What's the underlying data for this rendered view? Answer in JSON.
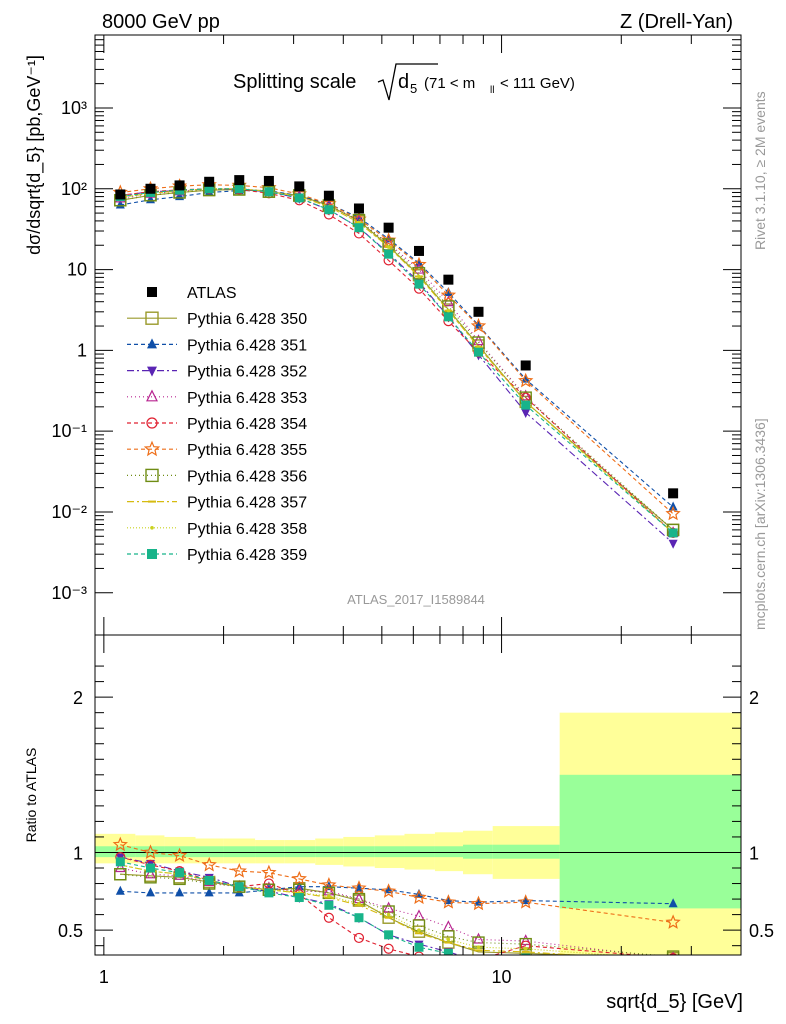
{
  "header": {
    "left": "8000 GeV pp",
    "right": "Z (Drell-Yan)",
    "plot_title_main": "Splitting scale",
    "plot_title_sub": "(71 < m",
    "plot_title_sub_idx": "ll",
    "plot_title_sub_end": " < 111 GeV)",
    "sqrt_var": "d",
    "sqrt_idx": "5"
  },
  "side_labels": {
    "rivet": "Rivet 3.1.10, ≥ 2M events",
    "mcplots": "mcplots.cern.ch [arXiv:1306.3436]"
  },
  "watermark": "ATLAS_2017_I1589844",
  "colors": {
    "green_band": "#99ff99",
    "yellow_band": "#ffff99"
  },
  "chart_data": [
    {
      "type": "line",
      "panel": "main",
      "xlabel": "sqrt{d_5} [GeV]",
      "ylabel": "dσ/dsqrt{d_5} [pb,GeV⁻¹]",
      "xscale": "log",
      "yscale": "log",
      "xlim": [
        0.95,
        40
      ],
      "ylim": [
        0.0003,
        8000
      ],
      "ytick_labels": [
        "10⁻³",
        "10⁻²",
        "10⁻¹",
        "1",
        "10",
        "10²",
        "10³"
      ],
      "xtick_labels": [
        "1",
        "10"
      ],
      "legend_position": "left",
      "data": {
        "name": "ATLAS",
        "x": [
          1.1,
          1.31,
          1.55,
          1.84,
          2.19,
          2.6,
          3.1,
          3.68,
          4.38,
          5.2,
          6.2,
          7.35,
          8.75,
          11.5,
          27
        ],
        "y": [
          85,
          100,
          110,
          122,
          128,
          125,
          107,
          82,
          57,
          33,
          17,
          7.5,
          3,
          0.65,
          0.017
        ]
      },
      "series": [
        {
          "name": "Pythia 6.428 350",
          "color": "#9a9a2b",
          "marker": "open-square",
          "dash": "solid",
          "y": [
            72,
            83,
            90,
            96,
            98,
            92,
            82,
            62,
            40,
            19.5,
            8.5,
            3.2,
            1.15,
            0.23,
            0.006
          ]
        },
        {
          "name": "Pythia 6.428 351",
          "color": "#0f4fa8",
          "marker": "triangle-up",
          "dash": "4,3",
          "y": [
            63,
            73,
            80,
            90,
            95,
            95,
            82,
            65,
            44,
            24,
            12,
            5.2,
            2.05,
            0.44,
            0.0115
          ]
        },
        {
          "name": "Pythia 6.428 352",
          "color": "#5a25b4",
          "marker": "triangle-down",
          "dash": "7,3,2,3",
          "y": [
            82,
            92,
            95,
            100,
            98,
            92,
            76,
            55,
            33,
            16,
            7,
            2.6,
            0.88,
            0.17,
            0.0041
          ]
        },
        {
          "name": "Pythia 6.428 353",
          "color": "#b82590",
          "marker": "open-triangle-up",
          "dash": "1,3",
          "y": [
            76,
            87,
            93,
            100,
            100,
            94,
            80,
            62,
            40,
            21,
            10,
            3.95,
            1.3,
            0.27,
            0.0055
          ]
        },
        {
          "name": "Pythia 6.428 354",
          "color": "#e02030",
          "marker": "open-circle",
          "dash": "4,3",
          "y": [
            83,
            92,
            97,
            100,
            98,
            88,
            72,
            48,
            28,
            13,
            5.8,
            2.3,
            0.95,
            0.26,
            0.0055
          ]
        },
        {
          "name": "Pythia 6.428 355",
          "color": "#ee6e18",
          "marker": "open-star",
          "dash": "4,3",
          "y": [
            90,
            100,
            108,
            112,
            110,
            103,
            86,
            65,
            42,
            23,
            11.5,
            4.8,
            2,
            0.42,
            0.0095
          ]
        },
        {
          "name": "Pythia 6.428 356",
          "color": "#6f8c14",
          "marker": "open-square",
          "dash": "1,3",
          "y": [
            72,
            83,
            90,
            97,
            98,
            92,
            83,
            62,
            41,
            20.5,
            9,
            3.5,
            1.25,
            0.26,
            0.006
          ]
        },
        {
          "name": "Pythia 6.428 357",
          "color": "#d6bb10",
          "marker": "bar",
          "dash": "7,3,2,3",
          "y": [
            78,
            88,
            94,
            100,
            100,
            93,
            80,
            60,
            38,
            19,
            8.2,
            3.1,
            1.1,
            0.23,
            0.0055
          ]
        },
        {
          "name": "Pythia 6.428 358",
          "color": "#c9d21e",
          "marker": "dot",
          "dash": "1,2",
          "y": [
            78,
            88,
            94,
            100,
            100,
            93,
            80,
            60,
            38,
            19,
            8.2,
            3.1,
            1.1,
            0.23,
            0.0055
          ]
        },
        {
          "name": "Pythia 6.428 359",
          "color": "#18b48a",
          "marker": "square",
          "dash": "4,3",
          "y": [
            80,
            90,
            96,
            100,
            100,
            92,
            77,
            55,
            33,
            15.5,
            6.6,
            2.6,
            0.95,
            0.21,
            0.0055
          ]
        }
      ]
    },
    {
      "type": "line",
      "panel": "ratio",
      "ylabel": "Ratio to ATLAS",
      "xlabel": "sqrt{d_5} [GeV]",
      "xscale": "log",
      "ylim": [
        0.34,
        2.4
      ],
      "ytick_labels": [
        "0.5",
        "1",
        "2"
      ],
      "band_edges": [
        0.95,
        1.2,
        1.42,
        1.7,
        2.0,
        2.4,
        2.85,
        3.4,
        4.0,
        4.8,
        5.7,
        6.8,
        8.0,
        9.5,
        14.0,
        40
      ],
      "green_band": [
        [
          0.97,
          1.04
        ],
        [
          0.97,
          1.04
        ],
        [
          0.97,
          1.04
        ],
        [
          0.97,
          1.04
        ],
        [
          0.97,
          1.04
        ],
        [
          0.97,
          1.04
        ],
        [
          0.97,
          1.04
        ],
        [
          0.97,
          1.04
        ],
        [
          0.97,
          1.04
        ],
        [
          0.97,
          1.04
        ],
        [
          0.97,
          1.04
        ],
        [
          0.97,
          1.04
        ],
        [
          0.96,
          1.05
        ],
        [
          0.96,
          1.05
        ],
        [
          0.64,
          1.5
        ]
      ],
      "yellow_band": [
        [
          0.93,
          1.12
        ],
        [
          0.93,
          1.11
        ],
        [
          0.93,
          1.1
        ],
        [
          0.93,
          1.09
        ],
        [
          0.93,
          1.09
        ],
        [
          0.93,
          1.08
        ],
        [
          0.93,
          1.08
        ],
        [
          0.92,
          1.09
        ],
        [
          0.91,
          1.1
        ],
        [
          0.9,
          1.11
        ],
        [
          0.89,
          1.12
        ],
        [
          0.88,
          1.13
        ],
        [
          0.86,
          1.14
        ],
        [
          0.83,
          1.17
        ],
        [
          0.29,
          1.9
        ]
      ],
      "series": [
        {
          "name": "Pythia 6.428 350",
          "y": [
            0.86,
            0.85,
            0.84,
            0.81,
            0.78,
            0.76,
            0.77,
            0.74,
            0.69,
            0.58,
            0.49,
            0.42,
            0.36,
            0.35,
            0.32
          ]
        },
        {
          "name": "Pythia 6.428 351",
          "y": [
            0.75,
            0.74,
            0.74,
            0.74,
            0.74,
            0.76,
            0.78,
            0.78,
            0.77,
            0.76,
            0.73,
            0.69,
            0.68,
            0.69,
            0.67
          ]
        },
        {
          "name": "Pythia 6.428 352",
          "y": [
            0.97,
            0.93,
            0.88,
            0.84,
            0.78,
            0.75,
            0.71,
            0.67,
            0.58,
            0.47,
            0.41,
            0.36,
            0.3,
            0.27,
            0.24
          ]
        },
        {
          "name": "Pythia 6.428 353",
          "y": [
            0.9,
            0.86,
            0.85,
            0.81,
            0.78,
            0.77,
            0.75,
            0.75,
            0.7,
            0.64,
            0.59,
            0.52,
            0.44,
            0.43,
            0.32
          ]
        },
        {
          "name": "Pythia 6.428 354",
          "y": [
            0.97,
            0.92,
            0.88,
            0.82,
            0.78,
            0.8,
            0.73,
            0.58,
            0.45,
            0.38,
            0.33,
            0.3,
            0.31,
            0.4,
            0.32
          ]
        },
        {
          "name": "Pythia 6.428 355",
          "y": [
            1.05,
            1.0,
            0.98,
            0.92,
            0.88,
            0.87,
            0.83,
            0.79,
            0.77,
            0.75,
            0.71,
            0.68,
            0.67,
            0.68,
            0.55
          ]
        },
        {
          "name": "Pythia 6.428 356",
          "y": [
            0.86,
            0.84,
            0.83,
            0.8,
            0.78,
            0.76,
            0.76,
            0.74,
            0.7,
            0.62,
            0.53,
            0.46,
            0.42,
            0.41,
            0.33
          ]
        },
        {
          "name": "Pythia 6.428 357",
          "y": [
            0.92,
            0.88,
            0.86,
            0.82,
            0.78,
            0.76,
            0.74,
            0.71,
            0.66,
            0.58,
            0.48,
            0.42,
            0.37,
            0.36,
            0.3
          ]
        },
        {
          "name": "Pythia 6.428 358",
          "y": [
            0.92,
            0.88,
            0.86,
            0.82,
            0.78,
            0.76,
            0.74,
            0.72,
            0.67,
            0.6,
            0.5,
            0.44,
            0.39,
            0.38,
            0.31
          ]
        },
        {
          "name": "Pythia 6.428 359",
          "y": [
            0.94,
            0.9,
            0.87,
            0.82,
            0.78,
            0.74,
            0.71,
            0.66,
            0.58,
            0.47,
            0.39,
            0.35,
            0.31,
            0.32,
            0.3
          ]
        }
      ]
    }
  ]
}
